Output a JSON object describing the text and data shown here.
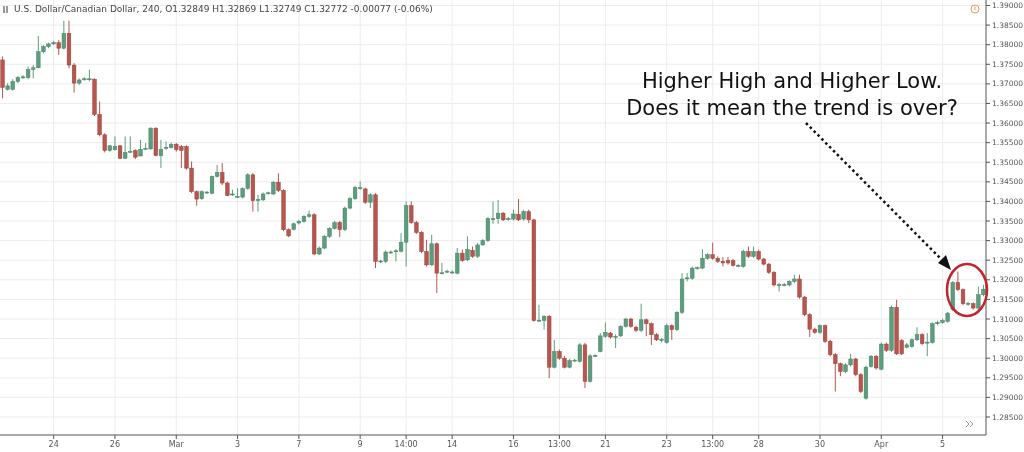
{
  "chart_data": {
    "type": "candlestick",
    "annotations": [
      "U.S. Dollar/Canadian Dollar, 240, O1.32849 H1.32869 L1.32749 C1.32772 -0.00077 (-0.06%)",
      "Higher High and Higher Low.\nDoes it mean the trend is over?"
    ],
    "categories": [
      null,
      null,
      null,
      null,
      null,
      null,
      null,
      null,
      null,
      null,
      "24",
      null,
      null,
      null,
      null,
      null,
      null,
      null,
      null,
      null,
      null,
      null,
      "26",
      null,
      null,
      null,
      null,
      null,
      null,
      null,
      null,
      null,
      null,
      null,
      "Mar",
      null,
      null,
      null,
      null,
      null,
      null,
      null,
      null,
      null,
      null,
      null,
      "3",
      null,
      null,
      null,
      null,
      null,
      null,
      null,
      null,
      null,
      null,
      null,
      "7",
      null,
      null,
      null,
      null,
      null,
      null,
      null,
      null,
      null,
      null,
      null,
      "9",
      null,
      null,
      null,
      null,
      null,
      null,
      null,
      null,
      "14:00",
      null,
      null,
      null,
      null,
      null,
      null,
      null,
      null,
      "14",
      null,
      null,
      null,
      null,
      null,
      null,
      null,
      null,
      null,
      null,
      null,
      "16",
      null,
      null,
      null,
      null,
      null,
      null,
      null,
      null,
      "13:00",
      null,
      null,
      null,
      null,
      null,
      null,
      null,
      null,
      "21",
      null,
      null,
      null,
      null,
      null,
      null,
      null,
      null,
      null,
      null,
      null,
      "23",
      null,
      null,
      null,
      null,
      null,
      null,
      null,
      null,
      "13:00",
      null,
      null,
      null,
      null,
      null,
      null,
      null,
      null,
      "28",
      null,
      null,
      null,
      null,
      null,
      null,
      null,
      null,
      null,
      null,
      null,
      "30",
      null,
      null,
      null,
      null,
      null,
      null,
      null,
      null,
      null,
      null,
      null,
      "Apr",
      null,
      null,
      null,
      null,
      null,
      null,
      null,
      null,
      null,
      null,
      null,
      "5",
      null,
      null,
      null,
      null,
      null,
      null,
      null,
      null
    ],
    "colors": [
      "#b9554d",
      "#5b9e7e",
      "#5b9e7e",
      "#5b9e7e",
      "#5b9e7e",
      "#5b9e7e",
      "#5b9e7e",
      "#5b9e7e",
      "#5b9e7e",
      "#5b9e7e",
      "#5b9e7e",
      "#b9554d",
      "#5b9e7e",
      "#b9554d",
      "#b9554d",
      "#5b9e7e",
      "#5b9e7e",
      "#5b9e7e",
      "#b9554d",
      "#b9554d",
      "#b9554d",
      "#5b9e7e",
      "#5b9e7e",
      "#b9554d",
      "#5b9e7e",
      "#5b9e7e",
      "#b9554d",
      "#5b9e7e",
      "#5b9e7e",
      "#5b9e7e",
      "#b9554d",
      "#5b9e7e",
      "#5b9e7e",
      "#5b9e7e",
      "#b9554d",
      "#b9554d",
      "#b9554d",
      "#b9554d",
      "#b9554d",
      "#5b9e7e",
      "#5b9e7e",
      "#5b9e7e",
      "#5b9e7e",
      "#b9554d",
      "#b9554d",
      "#5b9e7e",
      "#5b9e7e",
      "#5b9e7e",
      "#5b9e7e",
      "#b9554d",
      "#5b9e7e",
      "#5b9e7e",
      "#5b9e7e",
      "#5b9e7e",
      "#b9554d",
      "#b9554d",
      "#b9554d",
      "#5b9e7e",
      "#5b9e7e",
      "#5b9e7e",
      "#5b9e7e",
      "#b9554d",
      "#5b9e7e",
      "#5b9e7e",
      "#5b9e7e",
      "#5b9e7e",
      "#b9554d",
      "#5b9e7e",
      "#5b9e7e",
      "#5b9e7e",
      "#5b9e7e",
      "#b9554d",
      "#5b9e7e",
      "#b9554d",
      "#5b9e7e",
      "#5b9e7e",
      "#5b9e7e",
      "#5b9e7e",
      "#5b9e7e",
      "#5b9e7e",
      "#b9554d",
      "#b9554d",
      "#b9554d",
      "#b9554d",
      "#5b9e7e",
      "#b9554d",
      "#5b9e7e",
      "#5b9e7e",
      "#5b9e7e",
      "#5b9e7e",
      "#b9554d",
      "#5b9e7e",
      "#b9554d",
      "#5b9e7e",
      "#5b9e7e",
      "#5b9e7e",
      "#5b9e7e",
      "#5b9e7e",
      "#b9554d",
      "#5b9e7e",
      "#5b9e7e",
      "#b9554d",
      "#5b9e7e",
      "#b9554d",
      "#b9554d",
      "#5b9e7e",
      "#5b9e7e",
      "#b9554d",
      "#5b9e7e",
      "#b9554d",
      "#b9554d",
      "#5b9e7e",
      "#5b9e7e",
      "#5b9e7e",
      "#b9554d",
      "#5b9e7e",
      "#5b9e7e",
      "#5b9e7e",
      "#5b9e7e",
      "#b9554d",
      "#5b9e7e",
      "#5b9e7e",
      "#5b9e7e",
      "#b9554d",
      "#b9554d",
      "#5b9e7e",
      "#b9554d",
      "#b9554d",
      "#b9554d",
      "#5b9e7e",
      "#5b9e7e",
      "#b9554d",
      "#5b9e7e",
      "#5b9e7e",
      "#5b9e7e",
      "#5b9e7e",
      "#5b9e7e",
      "#5b9e7e",
      "#5b9e7e",
      "#b9554d",
      "#b9554d",
      "#b9554d",
      "#b9554d",
      "#b9554d",
      "#5b9e7e",
      "#5b9e7e",
      "#b9554d",
      "#5b9e7e",
      "#b9554d",
      "#b9554d",
      "#b9554d",
      "#b9554d",
      "#5b9e7e",
      "#5b9e7e",
      "#5b9e7e",
      "#5b9e7e",
      "#b9554d",
      "#b9554d",
      "#b9554d",
      "#b9554d",
      "#5b9e7e",
      "#b9554d",
      "#b9554d",
      "#b9554d",
      "#b9554d",
      "#5b9e7e",
      "#5b9e7e",
      "#b9554d",
      "#b9554d",
      "#5b9e7e",
      "#5b9e7e",
      "#b9554d",
      "#5b9e7e",
      "#b9554d",
      "#5b9e7e",
      "#b9554d",
      "#b9554d",
      "#5b9e7e",
      "#5b9e7e",
      "#5b9e7e",
      "#b9554d",
      "#5b9e7e",
      "#5b9e7e",
      "#5b9e7e",
      "#5b9e7e",
      "#5b9e7e",
      "#5b9e7e",
      "#b9554d",
      "#b9554d",
      "#5b9e7e",
      "#b9554d",
      "#5b9e7e",
      "#5b9e7e"
    ],
    "ylim": [
      1.2804,
      1.3914
    ],
    "yticks": [
      {
        "value": 1.285,
        "label": "1.28500"
      },
      {
        "value": 1.29,
        "label": "1.29000"
      },
      {
        "value": 1.295,
        "label": "1.29500"
      },
      {
        "value": 1.3,
        "label": "1.30000"
      },
      {
        "value": 1.305,
        "label": "1.30500"
      },
      {
        "value": 1.31,
        "label": "1.31000"
      },
      {
        "value": 1.315,
        "label": "1.31500"
      },
      {
        "value": 1.32,
        "label": "1.32000"
      },
      {
        "value": 1.325,
        "label": "1.32500"
      },
      {
        "value": 1.33,
        "label": "1.33000"
      },
      {
        "value": 1.335,
        "label": "1.33500"
      },
      {
        "value": 1.34,
        "label": "1.34000"
      },
      {
        "value": 1.345,
        "label": "1.34500"
      },
      {
        "value": 1.35,
        "label": "1.35000"
      },
      {
        "value": 1.355,
        "label": "1.35500"
      },
      {
        "value": 1.36,
        "label": "1.36000"
      },
      {
        "value": 1.365,
        "label": "1.36500"
      },
      {
        "value": 1.37,
        "label": "1.37000"
      },
      {
        "value": 1.375,
        "label": "1.37500"
      },
      {
        "value": 1.38,
        "label": "1.38000"
      },
      {
        "value": 1.385,
        "label": "1.38500"
      },
      {
        "value": 1.39,
        "label": "1.39000"
      }
    ],
    "grid": true,
    "ohlc": [
      [
        1.3761,
        1.377,
        1.3663,
        1.3691
      ],
      [
        1.3686,
        1.3702,
        1.3683,
        1.3695
      ],
      [
        1.3686,
        1.3712,
        1.3683,
        1.3706
      ],
      [
        1.3706,
        1.372,
        1.3702,
        1.3716
      ],
      [
        1.3716,
        1.3722,
        1.3712,
        1.3718
      ],
      [
        1.3716,
        1.3744,
        1.3712,
        1.3737
      ],
      [
        1.3737,
        1.3748,
        1.3714,
        1.3741
      ],
      [
        1.3741,
        1.3822,
        1.374,
        1.3782
      ],
      [
        1.3782,
        1.3799,
        1.3778,
        1.3795
      ],
      [
        1.3795,
        1.3805,
        1.3791,
        1.3802
      ],
      [
        1.3802,
        1.381,
        1.3799,
        1.3805
      ],
      [
        1.3805,
        1.3812,
        1.3774,
        1.3791
      ],
      [
        1.3791,
        1.3861,
        1.3788,
        1.3829
      ],
      [
        1.3829,
        1.3861,
        1.374,
        1.3748
      ],
      [
        1.3748,
        1.3753,
        1.3678,
        1.3702
      ],
      [
        1.3702,
        1.3714,
        1.3697,
        1.371
      ],
      [
        1.3711,
        1.3717,
        1.3708,
        1.3713
      ],
      [
        1.3712,
        1.3736,
        1.3706,
        1.3713
      ],
      [
        1.3712,
        1.3714,
        1.3618,
        1.3622
      ],
      [
        1.3622,
        1.3655,
        1.3566,
        1.357
      ],
      [
        1.357,
        1.3574,
        1.3525,
        1.353
      ],
      [
        1.353,
        1.3544,
        1.3527,
        1.3542
      ],
      [
        1.3532,
        1.3566,
        1.353,
        1.354
      ],
      [
        1.3542,
        1.3544,
        1.3508,
        1.351
      ],
      [
        1.351,
        1.3566,
        1.3508,
        1.3525
      ],
      [
        1.3526,
        1.3566,
        1.3523,
        1.3528
      ],
      [
        1.353,
        1.3533,
        1.3508,
        1.3513
      ],
      [
        1.3516,
        1.3557,
        1.3515,
        1.3533
      ],
      [
        1.3533,
        1.3549,
        1.3532,
        1.3535
      ],
      [
        1.3534,
        1.3589,
        1.3532,
        1.3587
      ],
      [
        1.3587,
        1.3589,
        1.3515,
        1.3517
      ],
      [
        1.3517,
        1.3557,
        1.3485,
        1.3533
      ],
      [
        1.3537,
        1.3553,
        1.3532,
        1.3538
      ],
      [
        1.3537,
        1.355,
        1.3535,
        1.3546
      ],
      [
        1.3546,
        1.3549,
        1.3527,
        1.3532
      ],
      [
        1.354,
        1.3544,
        1.3485,
        1.353
      ],
      [
        1.354,
        1.3543,
        1.3481,
        1.3485
      ],
      [
        1.3485,
        1.3502,
        1.3421,
        1.3425
      ],
      [
        1.3425,
        1.3428,
        1.3389,
        1.3406
      ],
      [
        1.3407,
        1.3428,
        1.3404,
        1.3425
      ],
      [
        1.3422,
        1.3426,
        1.3419,
        1.3424
      ],
      [
        1.3421,
        1.3466,
        1.3418,
        1.3464
      ],
      [
        1.3464,
        1.3493,
        1.3461,
        1.3474
      ],
      [
        1.3474,
        1.3498,
        1.3442,
        1.3447
      ],
      [
        1.3447,
        1.3451,
        1.3413,
        1.3415
      ],
      [
        1.3418,
        1.343,
        1.3414,
        1.3419
      ],
      [
        1.3412,
        1.3434,
        1.3409,
        1.3413
      ],
      [
        1.3411,
        1.3436,
        1.3408,
        1.3433
      ],
      [
        1.3433,
        1.3472,
        1.343,
        1.3468
      ],
      [
        1.3468,
        1.3472,
        1.3374,
        1.3402
      ],
      [
        1.3403,
        1.3417,
        1.3374,
        1.3405
      ],
      [
        1.3404,
        1.3423,
        1.3401,
        1.3419
      ],
      [
        1.342,
        1.3425,
        1.3418,
        1.3422
      ],
      [
        1.3419,
        1.3452,
        1.3417,
        1.3449
      ],
      [
        1.3449,
        1.3472,
        1.3424,
        1.3428
      ],
      [
        1.3428,
        1.3431,
        1.3324,
        1.3328
      ],
      [
        1.3328,
        1.3331,
        1.3309,
        1.3312
      ],
      [
        1.3329,
        1.3346,
        1.3326,
        1.3343
      ],
      [
        1.3345,
        1.3353,
        1.3341,
        1.3349
      ],
      [
        1.3349,
        1.3365,
        1.3346,
        1.3362
      ],
      [
        1.3362,
        1.3377,
        1.3358,
        1.3366
      ],
      [
        1.3366,
        1.337,
        1.3263,
        1.3266
      ],
      [
        1.3266,
        1.3285,
        1.3263,
        1.3281
      ],
      [
        1.3281,
        1.3314,
        1.3278,
        1.3311
      ],
      [
        1.3311,
        1.3334,
        1.3307,
        1.3331
      ],
      [
        1.3331,
        1.335,
        1.3328,
        1.3346
      ],
      [
        1.3346,
        1.335,
        1.3309,
        1.3328
      ],
      [
        1.3328,
        1.3387,
        1.3324,
        1.3383
      ],
      [
        1.3383,
        1.3411,
        1.338,
        1.3407
      ],
      [
        1.3407,
        1.344,
        1.3404,
        1.3435
      ],
      [
        1.3433,
        1.3451,
        1.343,
        1.3435
      ],
      [
        1.3432,
        1.3435,
        1.3394,
        1.3398
      ],
      [
        1.3398,
        1.3421,
        1.3383,
        1.3417
      ],
      [
        1.3417,
        1.3421,
        1.323,
        1.3247
      ],
      [
        1.3246,
        1.3251,
        1.3243,
        1.3248
      ],
      [
        1.3247,
        1.3275,
        1.3243,
        1.3271
      ],
      [
        1.327,
        1.3275,
        1.3266,
        1.3271
      ],
      [
        1.3272,
        1.3278,
        1.3247,
        1.3274
      ],
      [
        1.3273,
        1.3319,
        1.327,
        1.3296
      ],
      [
        1.3296,
        1.34,
        1.3234,
        1.3389
      ],
      [
        1.3389,
        1.34,
        1.3343,
        1.3346
      ],
      [
        1.3346,
        1.335,
        1.3317,
        1.3321
      ],
      [
        1.3321,
        1.3324,
        1.3268,
        1.3272
      ],
      [
        1.3272,
        1.3302,
        1.3234,
        1.3238
      ],
      [
        1.3238,
        1.3315,
        1.3236,
        1.3292
      ],
      [
        1.3292,
        1.3295,
        1.3166,
        1.3217
      ],
      [
        1.3216,
        1.3243,
        1.3214,
        1.3218
      ],
      [
        1.322,
        1.3226,
        1.3217,
        1.3222
      ],
      [
        1.3218,
        1.3224,
        1.3215,
        1.322
      ],
      [
        1.3217,
        1.3281,
        1.3214,
        1.3268
      ],
      [
        1.3268,
        1.3277,
        1.3246,
        1.3249
      ],
      [
        1.3251,
        1.3311,
        1.3248,
        1.3277
      ],
      [
        1.3275,
        1.3285,
        1.3256,
        1.326
      ],
      [
        1.326,
        1.3294,
        1.3256,
        1.3289
      ],
      [
        1.3289,
        1.3304,
        1.3287,
        1.33
      ],
      [
        1.33,
        1.336,
        1.3297,
        1.3356
      ],
      [
        1.3355,
        1.34,
        1.3343,
        1.3356
      ],
      [
        1.3356,
        1.3404,
        1.3343,
        1.337
      ],
      [
        1.337,
        1.3373,
        1.335,
        1.3353
      ],
      [
        1.3354,
        1.336,
        1.3351,
        1.3356
      ],
      [
        1.3355,
        1.3379,
        1.3351,
        1.3368
      ],
      [
        1.3367,
        1.3406,
        1.335,
        1.3353
      ],
      [
        1.3355,
        1.3379,
        1.3351,
        1.3374
      ],
      [
        1.3374,
        1.3379,
        1.3345,
        1.3353
      ],
      [
        1.3353,
        1.3356,
        1.3093,
        1.3096
      ],
      [
        1.3095,
        1.3136,
        1.3093,
        1.3097
      ],
      [
        1.3096,
        1.311,
        1.3073,
        1.3107
      ],
      [
        1.3107,
        1.311,
        1.2949,
        1.2977
      ],
      [
        1.2977,
        1.3047,
        1.2974,
        1.3017
      ],
      [
        1.3017,
        1.3022,
        1.2996,
        1.3
      ],
      [
        1.3,
        1.3005,
        1.2974,
        1.2977
      ],
      [
        1.2977,
        1.2998,
        1.2974,
        1.2994
      ],
      [
        1.2993,
        1.2998,
        1.2991,
        1.2995
      ],
      [
        1.2992,
        1.3039,
        1.2989,
        1.3034
      ],
      [
        1.3034,
        1.3039,
        1.2924,
        1.2941
      ],
      [
        1.2941,
        1.301,
        1.2938,
        1.3006
      ],
      [
        1.3005,
        1.301,
        1.3003,
        1.3007
      ],
      [
        1.3017,
        1.3064,
        1.3015,
        1.3057
      ],
      [
        1.3056,
        1.3091,
        1.3052,
        1.3066
      ],
      [
        1.3064,
        1.3067,
        1.305,
        1.3054
      ],
      [
        1.3055,
        1.3061,
        1.3026,
        1.3056
      ],
      [
        1.3057,
        1.3084,
        1.3054,
        1.3081
      ],
      [
        1.3081,
        1.3103,
        1.3078,
        1.31
      ],
      [
        1.31,
        1.3103,
        1.3078,
        1.3081
      ],
      [
        1.3079,
        1.3083,
        1.3067,
        1.3071
      ],
      [
        1.3071,
        1.3139,
        1.3067,
        1.3098
      ],
      [
        1.3098,
        1.3101,
        1.3056,
        1.3088
      ],
      [
        1.3088,
        1.3091,
        1.3034,
        1.306
      ],
      [
        1.306,
        1.3064,
        1.3044,
        1.3047
      ],
      [
        1.3046,
        1.3051,
        1.304,
        1.3048
      ],
      [
        1.304,
        1.3088,
        1.3037,
        1.3083
      ],
      [
        1.3083,
        1.3086,
        1.3047,
        1.3073
      ],
      [
        1.3073,
        1.312,
        1.3069,
        1.3117
      ],
      [
        1.3117,
        1.3217,
        1.3113,
        1.3202
      ],
      [
        1.3203,
        1.3217,
        1.3196,
        1.3205
      ],
      [
        1.3204,
        1.3234,
        1.32,
        1.323
      ],
      [
        1.3229,
        1.3234,
        1.3226,
        1.3231
      ],
      [
        1.323,
        1.3278,
        1.3227,
        1.3255
      ],
      [
        1.3255,
        1.3268,
        1.3251,
        1.3264
      ],
      [
        1.3264,
        1.3295,
        1.3251,
        1.3255
      ],
      [
        1.3255,
        1.326,
        1.3243,
        1.3247
      ],
      [
        1.3247,
        1.3258,
        1.3234,
        1.3243
      ],
      [
        1.3249,
        1.3258,
        1.3239,
        1.3243
      ],
      [
        1.3249,
        1.3253,
        1.3234,
        1.3237
      ],
      [
        1.3236,
        1.3241,
        1.3232,
        1.3237
      ],
      [
        1.3234,
        1.3277,
        1.3231,
        1.3272
      ],
      [
        1.3272,
        1.3285,
        1.3256,
        1.326
      ],
      [
        1.326,
        1.3285,
        1.3256,
        1.3272
      ],
      [
        1.3272,
        1.3277,
        1.3249,
        1.3253
      ],
      [
        1.3253,
        1.3256,
        1.3237,
        1.324
      ],
      [
        1.324,
        1.3243,
        1.3215,
        1.3219
      ],
      [
        1.3219,
        1.3222,
        1.3183,
        1.3187
      ],
      [
        1.3186,
        1.3192,
        1.317,
        1.3188
      ],
      [
        1.3186,
        1.3192,
        1.3183,
        1.3188
      ],
      [
        1.3187,
        1.3199,
        1.3183,
        1.3196
      ],
      [
        1.3196,
        1.3213,
        1.3192,
        1.3202
      ],
      [
        1.3202,
        1.3213,
        1.3152,
        1.3156
      ],
      [
        1.3156,
        1.3159,
        1.3107,
        1.3111
      ],
      [
        1.3111,
        1.3115,
        1.3054,
        1.3074
      ],
      [
        1.3074,
        1.3078,
        1.3062,
        1.3066
      ],
      [
        1.3066,
        1.3086,
        1.3062,
        1.3083
      ],
      [
        1.3083,
        1.3086,
        1.3039,
        1.3043
      ],
      [
        1.3043,
        1.3047,
        1.3005,
        1.3009
      ],
      [
        1.3009,
        1.3013,
        1.2915,
        1.2986
      ],
      [
        1.2986,
        1.2989,
        1.2954,
        1.2966
      ],
      [
        1.2966,
        1.2987,
        1.2962,
        1.2983
      ],
      [
        1.2983,
        1.3011,
        1.2979,
        1.2998
      ],
      [
        1.2998,
        1.3001,
        1.2954,
        1.2958
      ],
      [
        1.2958,
        1.2962,
        1.2911,
        1.2915
      ],
      [
        1.2898,
        1.2981,
        1.2894,
        1.2977
      ],
      [
        1.2979,
        1.3008,
        1.2976,
        1.3005
      ],
      [
        1.3005,
        1.3008,
        1.2971,
        1.2975
      ],
      [
        1.2972,
        1.304,
        1.2969,
        1.3036
      ],
      [
        1.3036,
        1.304,
        1.3016,
        1.302
      ],
      [
        1.302,
        1.3134,
        1.3016,
        1.313
      ],
      [
        1.313,
        1.3149,
        1.3008,
        1.3011
      ],
      [
        1.3045,
        1.3049,
        1.3008,
        1.3011
      ],
      [
        1.3028,
        1.3039,
        1.3025,
        1.3034
      ],
      [
        1.303,
        1.305,
        1.3027,
        1.3047
      ],
      [
        1.3047,
        1.3079,
        1.3044,
        1.306
      ],
      [
        1.306,
        1.3064,
        1.3033,
        1.3037
      ],
      [
        1.3039,
        1.3064,
        1.3005,
        1.3041
      ],
      [
        1.304,
        1.3091,
        1.3037,
        1.3088
      ],
      [
        1.3088,
        1.3096,
        1.3084,
        1.3091
      ],
      [
        1.3091,
        1.3101,
        1.3088,
        1.3096
      ],
      [
        1.3094,
        1.3118,
        1.3091,
        1.3115
      ],
      [
        1.3124,
        1.3197,
        1.312,
        1.3193
      ],
      [
        1.3193,
        1.3221,
        1.3171,
        1.3175
      ],
      [
        1.3175,
        1.3178,
        1.3135,
        1.3139
      ],
      [
        1.3138,
        1.3144,
        1.3134,
        1.314
      ],
      [
        1.3139,
        1.3142,
        1.3124,
        1.3128
      ],
      [
        1.3128,
        1.3183,
        1.3124,
        1.3162
      ],
      [
        1.3162,
        1.3187,
        1.3158,
        1.3176
      ]
    ]
  }
}
